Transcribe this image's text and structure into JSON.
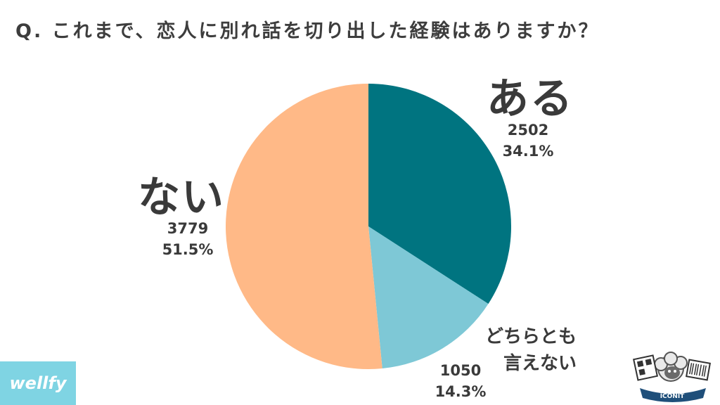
{
  "title": "Q. これまで、恋人に別れ話を切り出した経験はありますか？",
  "brand": {
    "logo_text": "wellfy",
    "badge_text": "ICONIT"
  },
  "chart_data": {
    "type": "pie",
    "title": "Q. これまで、恋人に別れ話を切り出した経験はありますか？",
    "start": "12 o'clock, clockwise",
    "slices": [
      {
        "label": "ある",
        "value": 2502,
        "percent": "34.1%",
        "color": "#007480"
      },
      {
        "label": "どちらとも言えない",
        "label_lines": [
          "どちらとも",
          "言えない"
        ],
        "value": 1050,
        "percent": "14.3%",
        "color": "#7ec8d6"
      },
      {
        "label": "ない",
        "value": 3779,
        "percent": "51.5%",
        "color": "#ffb987"
      }
    ]
  }
}
